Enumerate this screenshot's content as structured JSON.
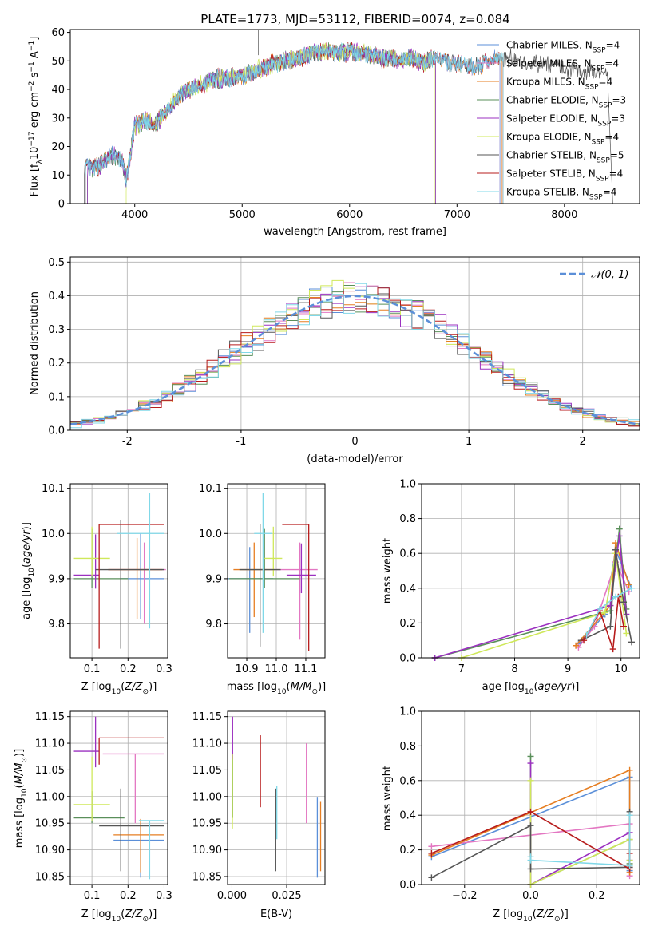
{
  "figure": {
    "title": "PLATE=1773, MJD=53112, FIBERID=0074, z=0.084"
  },
  "colors": {
    "Chabrier MILES": "#5b8fd8",
    "Salpeter MILES": "#e377c2",
    "Kroupa MILES": "#e67e22",
    "Chabrier ELODIE": "#5a8f5a",
    "Salpeter ELODIE": "#9b30c0",
    "Kroupa ELODIE": "#cfe85a",
    "Chabrier STELIB": "#555555",
    "Salpeter STELIB": "#b71c1c",
    "Kroupa STELIB": "#80d8e8",
    "gaussian": "#5b8fd8"
  },
  "chart_data": [
    {
      "id": "spectrum",
      "type": "line",
      "title": "PLATE=1773, MJD=53112, FIBERID=0074, z=0.084",
      "xlabel": "wavelength [Angstrom, rest frame]",
      "ylabel": "Flux [f_λ 10^-17 erg cm^-2 s^-1 A^-1]",
      "xlim": [
        3400,
        8700
      ],
      "ylim": [
        0,
        61
      ],
      "xticks": [
        4000,
        5000,
        6000,
        7000,
        8000
      ],
      "yticks": [
        0,
        10,
        20,
        30,
        40,
        50,
        60
      ],
      "grid": false,
      "legend": "top-right",
      "series": [
        {
          "name": "Chabrier MILES, N_SSP=4"
        },
        {
          "name": "Salpeter MILES, N_SSP=4"
        },
        {
          "name": "Kroupa MILES, N_SSP=4"
        },
        {
          "name": "Chabrier ELODIE, N_SSP=3"
        },
        {
          "name": "Salpeter ELODIE, N_SSP=3"
        },
        {
          "name": "Kroupa ELODIE, N_SSP=4"
        },
        {
          "name": "Chabrier STELIB, N_SSP=5"
        },
        {
          "name": "Salpeter STELIB, N_SSP=4"
        },
        {
          "name": "Kroupa STELIB, N_SSP=4"
        }
      ],
      "continuum": {
        "x": [
          3530,
          3600,
          3700,
          3800,
          3880,
          3920,
          3960,
          4000,
          4100,
          4200,
          4300,
          4400,
          4500,
          4600,
          4700,
          4800,
          4900,
          5000,
          5100,
          5200,
          5300,
          5400,
          5500,
          5600,
          5700,
          5800,
          5900,
          6000,
          6100,
          6200,
          6300,
          6400,
          6500,
          6600,
          6700,
          6800,
          6900,
          7000,
          7100,
          7200,
          7300,
          7400,
          7500,
          7600,
          7700,
          7800,
          7900,
          8000,
          8100,
          8200,
          8300,
          8400
        ],
        "y": [
          13,
          12,
          14,
          17,
          15,
          8,
          17,
          27,
          29,
          28,
          33,
          37,
          40,
          41,
          43,
          44,
          44,
          45,
          46,
          48,
          49,
          50,
          51,
          52,
          53,
          53,
          53,
          53,
          53,
          52,
          51,
          51,
          50,
          51,
          49,
          52,
          49,
          49,
          48,
          48,
          50,
          51,
          51,
          50,
          49,
          49,
          49,
          47,
          47,
          46,
          46,
          45
        ]
      },
      "model_ranges": [
        {
          "series": "Kroupa MILES, N_SSP=4",
          "x": [
            3540,
            7420
          ]
        },
        {
          "series": "Kroupa ELODIE, N_SSP=4",
          "x": [
            3920,
            6790
          ]
        },
        {
          "series": "Chabrier STELIB, N_SSP=5",
          "x": [
            3530,
            8450
          ]
        }
      ]
    },
    {
      "id": "residual-histogram",
      "type": "histogram",
      "xlabel": "(data-model)/error",
      "ylabel": "Normed distribution",
      "xlim": [
        -2.5,
        2.5
      ],
      "ylim": [
        0,
        0.515
      ],
      "xticks": [
        -2,
        -1,
        0,
        1,
        2
      ],
      "yticks": [
        0.0,
        0.1,
        0.2,
        0.3,
        0.4,
        0.5
      ],
      "grid": true,
      "legend": "top-right",
      "legend_label": "N(0, 1)",
      "bin_width": 0.1
    },
    {
      "id": "age-vs-Z",
      "type": "errorbar",
      "xlabel": "Z [log10(Z/Z⊙)]",
      "ylabel": "age  [log10(age/yr)]",
      "xlim": [
        0.04,
        0.31
      ],
      "ylim": [
        9.725,
        10.11
      ],
      "xticks": [
        0.1,
        0.2,
        0.3
      ],
      "yticks": [
        9.8,
        9.9,
        10.0,
        10.1
      ],
      "grid": true,
      "points": [
        {
          "series": "Chabrier MILES",
          "x": 0.235,
          "y": 9.9,
          "x_err": [
            0.055,
            0.065
          ],
          "y_err": [
            0.09,
            0.1
          ]
        },
        {
          "series": "Salpeter MILES",
          "x": 0.245,
          "y": 9.92,
          "x_err": [
            0.1,
            0.06
          ],
          "y_err": [
            0.12,
            0.06
          ]
        },
        {
          "series": "Kroupa MILES",
          "x": 0.225,
          "y": 9.92,
          "x_err": [
            0.08,
            0.07
          ],
          "y_err": [
            0.11,
            0.07
          ]
        },
        {
          "series": "Chabrier ELODIE",
          "x": 0.1,
          "y": 9.9,
          "x_err": [
            0.05,
            0.1
          ],
          "y_err": [
            0.02,
            0.11
          ]
        },
        {
          "series": "Salpeter ELODIE",
          "x": 0.11,
          "y": 9.908,
          "x_err": [
            0.06,
            0.01
          ],
          "y_err": [
            0.03,
            0.09
          ]
        },
        {
          "series": "Kroupa ELODIE",
          "x": 0.1,
          "y": 9.945,
          "x_err": [
            0.05,
            0.05
          ],
          "y_err": [
            0.04,
            0.07
          ]
        },
        {
          "series": "Chabrier STELIB",
          "x": 0.18,
          "y": 9.92,
          "x_err": [
            0.07,
            0.12
          ],
          "y_err": [
            0.175,
            0.11
          ]
        },
        {
          "series": "Salpeter STELIB",
          "x": 0.12,
          "y": 10.02,
          "x_err": [
            0,
            0.18
          ],
          "y_err": [
            0.275,
            0.0
          ]
        },
        {
          "series": "Kroupa STELIB",
          "x": 0.26,
          "y": 10.0,
          "x_err": [
            0.09,
            0.04
          ],
          "y_err": [
            0.21,
            0.09
          ]
        }
      ]
    },
    {
      "id": "age-vs-mass",
      "type": "errorbar",
      "xlabel": "mass [log10(M/M⊙)]",
      "ylabel": "",
      "xlim": [
        10.835,
        11.165
      ],
      "ylim": [
        9.725,
        10.11
      ],
      "xticks": [
        10.9,
        11.0,
        11.1
      ],
      "yticks": [
        9.8,
        9.9,
        10.0,
        10.1
      ],
      "grid": true,
      "points": [
        {
          "series": "Chabrier MILES",
          "x": 10.91,
          "y": 9.9,
          "x_err": [
            0.08,
            0.08
          ],
          "y_err": [
            0.12,
            0.07
          ]
        },
        {
          "series": "Salpeter MILES",
          "x": 11.08,
          "y": 9.92,
          "x_err": [
            0.08,
            0.06
          ],
          "y_err": [
            0.155,
            0.06
          ]
        },
        {
          "series": "Kroupa MILES",
          "x": 10.925,
          "y": 9.92,
          "x_err": [
            0.07,
            0.07
          ],
          "y_err": [
            0.105,
            0.06
          ]
        },
        {
          "series": "Chabrier ELODIE",
          "x": 10.96,
          "y": 9.9,
          "x_err": [
            0.12,
            0.12
          ],
          "y_err": [
            0.02,
            0.11
          ]
        },
        {
          "series": "Salpeter ELODIE",
          "x": 11.085,
          "y": 9.908,
          "x_err": [
            0.05,
            0.05
          ],
          "y_err": [
            0.04,
            0.07
          ]
        },
        {
          "series": "Kroupa ELODIE",
          "x": 10.99,
          "y": 9.945,
          "x_err": [
            0.03,
            0.03
          ],
          "y_err": [
            0.04,
            0.07
          ]
        },
        {
          "series": "Chabrier STELIB",
          "x": 10.945,
          "y": 9.92,
          "x_err": [
            0.07,
            0.07
          ],
          "y_err": [
            0.17,
            0.1
          ]
        },
        {
          "series": "Salpeter STELIB",
          "x": 11.11,
          "y": 10.02,
          "x_err": [
            0.09,
            0.0
          ],
          "y_err": [
            0.28,
            0.0
          ]
        },
        {
          "series": "Kroupa STELIB",
          "x": 10.955,
          "y": 10.0,
          "x_err": [
            0.03,
            0.03
          ],
          "y_err": [
            0.22,
            0.09
          ]
        }
      ]
    },
    {
      "id": "mass-weight-vs-age",
      "type": "line",
      "xlabel": "age  [log10(age/yr)]",
      "ylabel": "mass weight",
      "xlim": [
        6.25,
        10.35
      ],
      "ylim": [
        0,
        1.0
      ],
      "xticks": [
        7,
        8,
        9,
        10
      ],
      "yticks": [
        0.0,
        0.2,
        0.4,
        0.6,
        0.8,
        1.0
      ],
      "grid": true,
      "series": [
        {
          "series": "Chabrier MILES",
          "x": [
            9.2,
            9.7,
            9.9,
            10.2
          ],
          "y": [
            0.08,
            0.25,
            0.62,
            0.4
          ]
        },
        {
          "series": "Salpeter MILES",
          "x": [
            9.2,
            9.5,
            9.9,
            10.15
          ],
          "y": [
            0.06,
            0.18,
            0.55,
            0.38
          ]
        },
        {
          "series": "Kroupa MILES",
          "x": [
            9.15,
            9.8,
            9.9,
            10.15
          ],
          "y": [
            0.07,
            0.3,
            0.66,
            0.42
          ]
        },
        {
          "series": "Chabrier ELODIE",
          "x": [
            6.5,
            9.8,
            9.97,
            10.1
          ],
          "y": [
            0.0,
            0.27,
            0.74,
            0.28
          ]
        },
        {
          "series": "Salpeter ELODIE",
          "x": [
            6.5,
            9.8,
            9.97,
            10.1
          ],
          "y": [
            0.0,
            0.3,
            0.7,
            0.25
          ]
        },
        {
          "series": "Kroupa ELODIE",
          "x": [
            7.0,
            9.7,
            9.9,
            10.1
          ],
          "y": [
            0.0,
            0.26,
            0.6,
            0.14
          ]
        },
        {
          "series": "Chabrier STELIB",
          "x": [
            9.25,
            9.8,
            9.9,
            10.05,
            10.2
          ],
          "y": [
            0.1,
            0.18,
            0.62,
            0.32,
            0.09
          ]
        },
        {
          "series": "Salpeter STELIB",
          "x": [
            9.3,
            9.6,
            9.85,
            9.95,
            10.05
          ],
          "y": [
            0.1,
            0.27,
            0.05,
            0.35,
            0.18
          ]
        },
        {
          "series": "Kroupa STELIB",
          "x": [
            9.35,
            9.6,
            9.9,
            10.2
          ],
          "y": [
            0.13,
            0.28,
            0.35,
            0.4
          ]
        }
      ]
    },
    {
      "id": "mass-vs-Z",
      "type": "errorbar",
      "xlabel": "Z [log10(Z/Z⊙)]",
      "ylabel": "mass [log10(M/M⊙)]",
      "xlim": [
        0.04,
        0.31
      ],
      "ylim": [
        10.835,
        11.16
      ],
      "xticks": [
        0.1,
        0.2,
        0.3
      ],
      "yticks": [
        10.85,
        10.9,
        10.95,
        11.0,
        11.05,
        11.1,
        11.15
      ],
      "grid": true,
      "points": [
        {
          "series": "Chabrier MILES",
          "x": 0.235,
          "y": 10.918,
          "x_err": [
            0.075,
            0.065
          ],
          "y_err": [
            0.07,
            0.03
          ]
        },
        {
          "series": "Salpeter MILES",
          "x": 0.22,
          "y": 11.08,
          "x_err": [
            0.09,
            0.08
          ],
          "y_err": [
            0.13,
            0.0
          ]
        },
        {
          "series": "Kroupa MILES",
          "x": 0.235,
          "y": 10.928,
          "x_err": [
            0.075,
            0.065
          ],
          "y_err": [
            0.07,
            0.03
          ]
        },
        {
          "series": "Chabrier ELODIE",
          "x": 0.1,
          "y": 10.96,
          "x_err": [
            0.05,
            0.09
          ],
          "y_err": [
            0.01,
            0.05
          ]
        },
        {
          "series": "Salpeter ELODIE",
          "x": 0.11,
          "y": 11.085,
          "x_err": [
            0.06,
            0.01
          ],
          "y_err": [
            0.03,
            0.065
          ]
        },
        {
          "series": "Kroupa ELODIE",
          "x": 0.1,
          "y": 10.985,
          "x_err": [
            0.05,
            0.05
          ],
          "y_err": [
            0.03,
            0.09
          ]
        },
        {
          "series": "Chabrier STELIB",
          "x": 0.18,
          "y": 10.945,
          "x_err": [
            0.06,
            0.12
          ],
          "y_err": [
            0.085,
            0.07
          ]
        },
        {
          "series": "Salpeter STELIB",
          "x": 0.12,
          "y": 11.11,
          "x_err": [
            0,
            0.18
          ],
          "y_err": [
            0.05,
            0.0
          ]
        },
        {
          "series": "Kroupa STELIB",
          "x": 0.26,
          "y": 10.955,
          "x_err": [
            0.03,
            0.04
          ],
          "y_err": [
            0.11,
            0.0
          ]
        }
      ]
    },
    {
      "id": "mass-vs-EBV",
      "type": "errorbar",
      "xlabel": "E(B-V)",
      "ylabel": "",
      "xlim": [
        -0.002,
        0.0425
      ],
      "ylim": [
        10.835,
        11.16
      ],
      "xticks": [
        0.0,
        0.025
      ],
      "xtick_labels": [
        "0.000",
        "0.025"
      ],
      "yticks": [
        10.85,
        10.9,
        10.95,
        11.0,
        11.05,
        11.1,
        11.15
      ],
      "grid": true,
      "points": [
        {
          "series": "Chabrier MILES",
          "x": 0.039,
          "y": 10.918,
          "y_err": [
            0.07,
            0.08
          ]
        },
        {
          "series": "Salpeter MILES",
          "x": 0.034,
          "y": 11.02,
          "y_err": [
            0.07,
            0.08
          ]
        },
        {
          "series": "Kroupa MILES",
          "x": 0.0405,
          "y": 10.93,
          "y_err": [
            0.07,
            0.06
          ]
        },
        {
          "series": "Chabrier ELODIE",
          "x": 0.0003,
          "y": 11.0,
          "y_err": [
            0.04,
            0.08
          ]
        },
        {
          "series": "Salpeter ELODIE",
          "x": 0.0003,
          "y": 11.1,
          "y_err": [
            0.03,
            0.05
          ]
        },
        {
          "series": "Kroupa ELODIE",
          "x": 0.0002,
          "y": 11.0,
          "y_err": [
            0.06,
            0.08
          ]
        },
        {
          "series": "Chabrier STELIB",
          "x": 0.02,
          "y": 10.95,
          "y_err": [
            0.09,
            0.065
          ]
        },
        {
          "series": "Salpeter STELIB",
          "x": 0.013,
          "y": 11.05,
          "y_err": [
            0.07,
            0.065
          ]
        },
        {
          "series": "Kroupa STELIB",
          "x": 0.0205,
          "y": 10.96,
          "y_err": [
            0.04,
            0.06
          ]
        }
      ]
    },
    {
      "id": "mass-weight-vs-Z",
      "type": "line",
      "xlabel": "Z [log10(Z/Z⊙)]",
      "ylabel": "mass weight",
      "xlim": [
        -0.33,
        0.33
      ],
      "ylim": [
        0,
        1.0
      ],
      "xticks": [
        -0.2,
        0.0,
        0.2
      ],
      "yticks": [
        0.0,
        0.2,
        0.4,
        0.6,
        0.8,
        1.0
      ],
      "grid": true,
      "series": [
        {
          "series": "Chabrier MILES",
          "x": [
            -0.3,
            0.3,
            0.3
          ],
          "y": [
            0.16,
            0.62,
            0.08
          ]
        },
        {
          "series": "Salpeter MILES",
          "x": [
            -0.3,
            0.3,
            0.3
          ],
          "y": [
            0.22,
            0.35,
            0.05
          ]
        },
        {
          "series": "Kroupa MILES",
          "x": [
            -0.3,
            0.3,
            0.3
          ],
          "y": [
            0.17,
            0.66,
            0.07
          ]
        },
        {
          "series": "Chabrier ELODIE",
          "x": [
            0.0,
            0.0,
            0.3,
            0.3
          ],
          "y": [
            0.74,
            0.0,
            0.26,
            0.12
          ]
        },
        {
          "series": "Salpeter ELODIE",
          "x": [
            0.0,
            0.0,
            0.3,
            0.3
          ],
          "y": [
            0.7,
            0.0,
            0.3,
            0.14
          ]
        },
        {
          "series": "Kroupa ELODIE",
          "x": [
            0.0,
            0.0,
            0.3,
            0.3
          ],
          "y": [
            0.6,
            0.0,
            0.26,
            0.14
          ]
        },
        {
          "series": "Chabrier STELIB",
          "x": [
            -0.3,
            0.0,
            0.0,
            0.3,
            0.3
          ],
          "y": [
            0.04,
            0.34,
            0.09,
            0.1,
            0.42
          ]
        },
        {
          "series": "Salpeter STELIB",
          "x": [
            -0.3,
            0.0,
            0.3,
            0.3
          ],
          "y": [
            0.18,
            0.42,
            0.09,
            0.18
          ]
        },
        {
          "series": "Kroupa STELIB",
          "x": [
            0.0,
            0.0,
            0.3,
            0.3
          ],
          "y": [
            0.16,
            0.14,
            0.11,
            0.4
          ]
        }
      ]
    }
  ]
}
